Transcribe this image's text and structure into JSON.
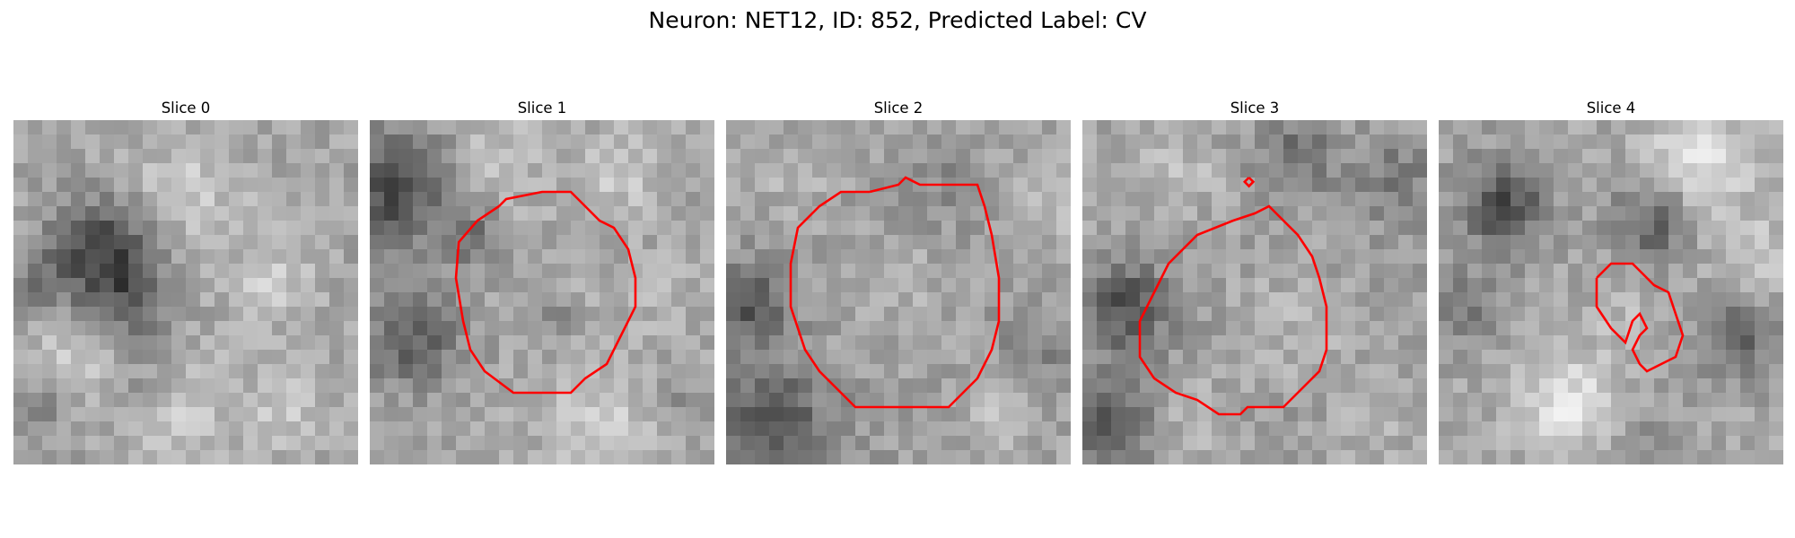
{
  "figure": {
    "title": "Neuron: NET12, ID: 852, Predicted Label: CV"
  },
  "panels": [
    {
      "title": "Slice 0"
    },
    {
      "title": "Slice 1"
    },
    {
      "title": "Slice 2"
    },
    {
      "title": "Slice 3"
    },
    {
      "title": "Slice 4"
    }
  ],
  "colors": {
    "contour": "#ff0000",
    "background": "#ffffff",
    "image_palette": "grayscale"
  }
}
